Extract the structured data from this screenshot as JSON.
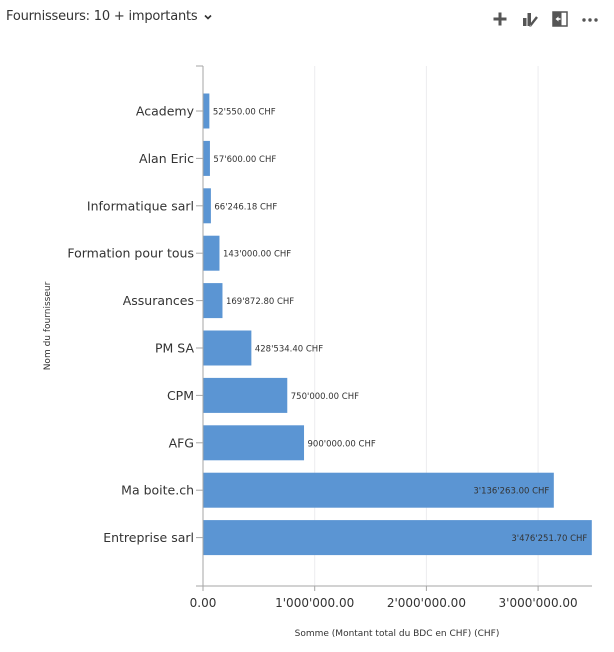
{
  "header": {
    "title": "Fournisseurs: 10 + importants",
    "toolbar": [
      {
        "icon": "plus-icon",
        "label": "Add"
      },
      {
        "icon": "chart-edit-icon",
        "label": "Chart edit"
      },
      {
        "icon": "expand-panel-icon",
        "label": "Expand"
      },
      {
        "icon": "more-icon",
        "label": "More"
      }
    ]
  },
  "colors": {
    "bar": "#5B95D3",
    "axis": "#A6A6A6",
    "grid": "#ECECEF",
    "text": "#333333"
  },
  "chart_data": {
    "type": "bar",
    "orientation": "horizontal",
    "categories": [
      "Academy",
      "Alan Eric",
      "Informatique sarl",
      "Formation pour tous",
      "Assurances",
      "PM SA",
      "CPM",
      "AFG",
      "Ma boite.ch",
      "Entreprise sarl"
    ],
    "values": [
      52550.0,
      57600.0,
      66246.18,
      143000.0,
      169872.8,
      428534.4,
      750000.0,
      900000.0,
      3136263.0,
      3476251.7
    ],
    "data_labels": [
      "52'550.00 CHF",
      "57'600.00 CHF",
      "66'246.18 CHF",
      "143'000.00 CHF",
      "169'872.80 CHF",
      "428'534.40 CHF",
      "750'000.00 CHF",
      "900'000.00 CHF",
      "3'136'263.00 CHF",
      "3'476'251.70 CHF"
    ],
    "xlabel": "Somme (Montant total du BDC en CHF) (CHF)",
    "ylabel": "Nom du fournisseur",
    "xlim": [
      0,
      3476251.7
    ],
    "xticks": [
      0,
      1000000,
      2000000,
      3000000
    ],
    "xtick_labels": [
      "0.00",
      "1'000'000.00",
      "2'000'000.00",
      "3'000'000.00"
    ],
    "grid": "vertical",
    "legend": "none"
  }
}
